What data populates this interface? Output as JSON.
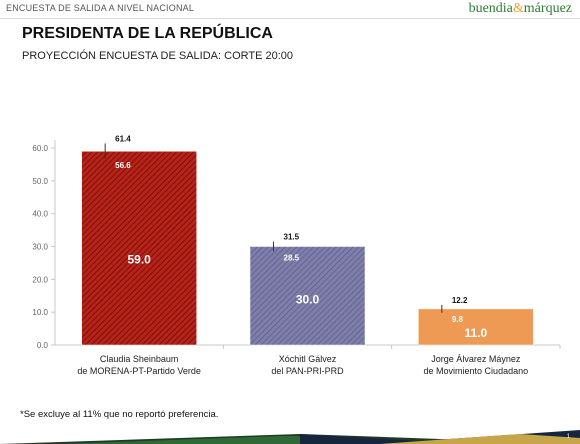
{
  "header": {
    "label": "ENCUESTA DE SALIDA A NIVEL NACIONAL",
    "brand_part1": "buendia",
    "brand_amp": "&",
    "brand_part2": "márquez"
  },
  "title": "PRESIDENTA DE LA REPÚBLICA",
  "subtitle": "PROYECCIÓN ENCUESTA DE SALIDA: CORTE 20:00",
  "footnote": "*Se excluye al 11% que no reportó preferencia.",
  "page_number": "1",
  "colors": {
    "bar1": "#c0281e",
    "bar2": "#7a7aa6",
    "bar3": "#ee9a55",
    "axis": "#c8c8c8"
  },
  "chart_data": {
    "type": "bar",
    "categories": [
      [
        "Claudia Sheinbaum",
        "de MORENA-PT-Partido Verde"
      ],
      [
        "Xóchitl Gálvez",
        "del PAN-PRI-PRD"
      ],
      [
        "Jorge Álvarez Máynez",
        "de Movimiento Ciudadano"
      ]
    ],
    "values": [
      59.0,
      30.0,
      11.0
    ],
    "value_labels": [
      "59.0",
      "30.0",
      "11.0"
    ],
    "upper": [
      61.4,
      31.5,
      12.2
    ],
    "upper_labels": [
      "61.4",
      "31.5",
      "12.2"
    ],
    "lower": [
      56.6,
      28.5,
      9.8
    ],
    "lower_labels": [
      "56.6",
      "28.5",
      "9.8"
    ],
    "ylim": [
      0,
      60
    ],
    "yticks": [
      "0.0",
      "10.0",
      "20.0",
      "30.0",
      "40.0",
      "50.0",
      "60.0"
    ],
    "grid": false,
    "legend": "none"
  }
}
